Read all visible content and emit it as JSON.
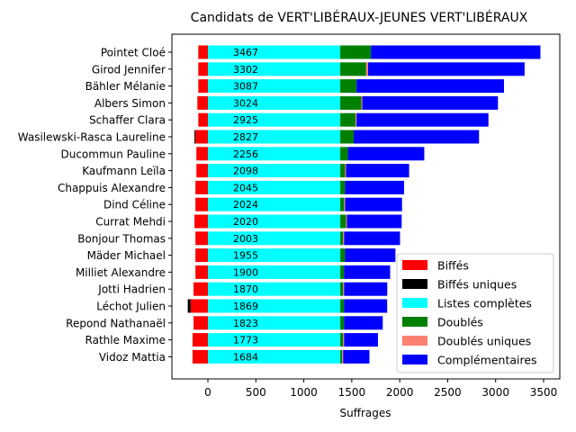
{
  "chart_data": {
    "type": "bar",
    "orientation": "horizontal",
    "stacked": true,
    "title": "Candidats de VERT'LIBÉRAUX-JEUNES VERT'LIBÉRAUX",
    "xlabel": "Suffrages",
    "ylabel": "",
    "xlim": [
      -400,
      3700
    ],
    "xticks": [
      0,
      500,
      1000,
      1500,
      2000,
      2500,
      3000,
      3500
    ],
    "grid": false,
    "legend_position": "lower-right",
    "categories": [
      "Pointet Cloé",
      "Girod Jennifer",
      "Bähler Mélanie",
      "Albers Simon",
      "Schaffer Clara",
      "Wasilewski-Rasca Laureline",
      "Ducommun Pauline",
      "Kaufmann Leïla",
      "Chappuis Alexandre",
      "Dind Céline",
      "Currat Mehdi",
      "Bonjour Thomas",
      "Mäder Michael",
      "Milliet Alexandre",
      "Jotti Hadrien",
      "Léchot Julien",
      "Repond Nathanaël",
      "Rathle Maxime",
      "Vidoz Mattia"
    ],
    "totals": [
      3467,
      3302,
      3087,
      3024,
      2925,
      2827,
      2256,
      2098,
      2045,
      2024,
      2020,
      2003,
      1955,
      1900,
      1870,
      1869,
      1823,
      1773,
      1684
    ],
    "series": [
      {
        "name": "Biffés",
        "color": "#ff0000",
        "values": [
          -100,
          -100,
          -100,
          -110,
          -100,
          -130,
          -120,
          -120,
          -130,
          -130,
          -140,
          -130,
          -130,
          -130,
          -150,
          -180,
          -150,
          -160,
          -160
        ]
      },
      {
        "name": "Biffés uniques",
        "color": "#000000",
        "values": [
          0,
          0,
          0,
          0,
          0,
          -10,
          0,
          0,
          0,
          0,
          0,
          0,
          0,
          0,
          0,
          -30,
          0,
          0,
          0
        ]
      },
      {
        "name": "Listes complètes",
        "color": "#00ffff",
        "values": [
          1380,
          1380,
          1380,
          1380,
          1380,
          1380,
          1380,
          1380,
          1380,
          1380,
          1380,
          1380,
          1380,
          1380,
          1380,
          1380,
          1380,
          1380,
          1380
        ]
      },
      {
        "name": "Doublés",
        "color": "#008000",
        "values": [
          320,
          270,
          170,
          220,
          160,
          140,
          80,
          50,
          50,
          40,
          60,
          30,
          50,
          40,
          30,
          40,
          40,
          30,
          20
        ]
      },
      {
        "name": "Doublés uniques",
        "color": "#fa8072",
        "values": [
          0,
          20,
          0,
          10,
          10,
          0,
          0,
          10,
          0,
          10,
          10,
          10,
          0,
          0,
          10,
          0,
          0,
          10,
          10
        ]
      },
      {
        "name": "Complémentaires",
        "color": "#0000ff",
        "values": [
          1767,
          1632,
          1537,
          1414,
          1375,
          1307,
          796,
          658,
          615,
          594,
          570,
          583,
          525,
          480,
          450,
          449,
          403,
          353,
          274
        ]
      }
    ]
  }
}
